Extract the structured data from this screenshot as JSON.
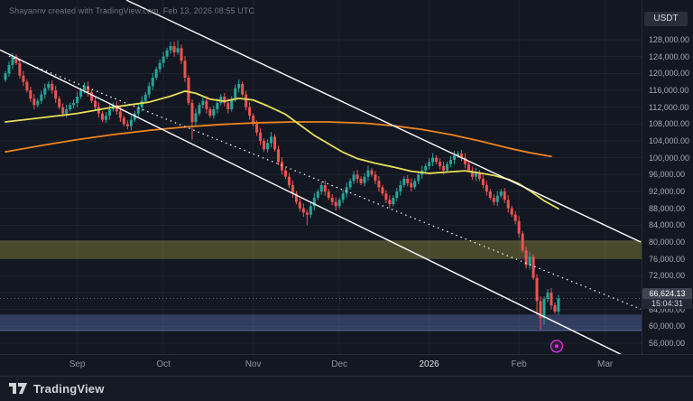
{
  "meta": {
    "attribution": "Shayannv created with TradingView.com, Feb 13, 2026 08:55 UTC",
    "currency_label": "USDT",
    "brand": "TradingView"
  },
  "price_label": {
    "price": "66,624.13",
    "countdown": "15:04:31"
  },
  "chart_data": {
    "type": "candlestick",
    "unit": "USD",
    "ylim": [
      52000,
      137400
    ],
    "grid": true,
    "price_ticks": [
      128000,
      124000,
      120000,
      116000,
      112000,
      108000,
      104000,
      100000,
      96000,
      92000,
      88000,
      84000,
      80000,
      76000,
      72000,
      68000,
      64000,
      60000,
      56000
    ],
    "time_ticks": [
      {
        "label": "Sep",
        "index": 20
      },
      {
        "label": "Oct",
        "index": 44
      },
      {
        "label": "Nov",
        "index": 69
      },
      {
        "label": "Dec",
        "index": 93
      },
      {
        "label": "2026",
        "index": 118,
        "year": true
      },
      {
        "label": "Feb",
        "index": 143
      },
      {
        "label": "Mar",
        "index": 167
      }
    ],
    "candles": {
      "up_color": "#26a69a",
      "down_color": "#ef5350",
      "first_open": 118500,
      "default_wick": 600,
      "closes": [
        120000,
        122000,
        124000,
        122500,
        119500,
        118000,
        116000,
        114000,
        112500,
        113500,
        115000,
        116500,
        117500,
        116000,
        114000,
        112000,
        110500,
        111500,
        112500,
        113000,
        114500,
        116000,
        117000,
        115500,
        113500,
        112000,
        110500,
        109000,
        110000,
        111500,
        112500,
        111000,
        109500,
        108000,
        107500,
        109000,
        110500,
        112000,
        113500,
        115000,
        117000,
        119000,
        121000,
        122500,
        124000,
        125500,
        126500,
        125000,
        126000,
        123000,
        119000,
        113000,
        108500,
        110500,
        112500,
        113500,
        111500,
        110000,
        111500,
        113000,
        114500,
        113000,
        111500,
        114000,
        116500,
        117500,
        115000,
        112000,
        110000,
        108000,
        106000,
        104000,
        102000,
        103500,
        105000,
        102000,
        99000,
        97000,
        95500,
        93500,
        91500,
        89500,
        88000,
        87000,
        86500,
        88500,
        90500,
        92000,
        93500,
        92000,
        90500,
        89500,
        88500,
        90000,
        91500,
        93000,
        94500,
        96000,
        95000,
        94000,
        95500,
        97000,
        96000,
        94500,
        93000,
        91500,
        90000,
        89000,
        90500,
        92000,
        93500,
        95000,
        94000,
        93000,
        94500,
        96000,
        97000,
        98000,
        99000,
        100000,
        99000,
        98000,
        97000,
        98500,
        99500,
        100500,
        101000,
        100000,
        98500,
        97000,
        95500,
        96500,
        95000,
        93500,
        92000,
        90500,
        89500,
        91000,
        92000,
        90000,
        88000,
        86500,
        85000,
        82000,
        78000,
        74500,
        76500,
        71500,
        66000,
        62000,
        66500,
        68000,
        65000,
        63500,
        66624.13
      ],
      "wick_overrides": {
        "2": {
          "high": 124900
        },
        "46": {
          "high": 127500
        },
        "48": {
          "high": 127900
        },
        "52": {
          "low": 104300
        },
        "84": {
          "low": 84000
        },
        "148": {
          "low": 62800
        },
        "149": {
          "low": 59200
        },
        "150": {
          "low": 60400
        }
      }
    },
    "overlays": {
      "ma_fast": {
        "color": "#e5df59",
        "points": [
          [
            0,
            108500
          ],
          [
            10,
            109500
          ],
          [
            20,
            110500
          ],
          [
            30,
            112000
          ],
          [
            40,
            113200
          ],
          [
            46,
            114600
          ],
          [
            50,
            115800
          ],
          [
            53,
            115300
          ],
          [
            57,
            113900
          ],
          [
            61,
            113400
          ],
          [
            65,
            114100
          ],
          [
            69,
            113700
          ],
          [
            73,
            112300
          ],
          [
            78,
            110300
          ],
          [
            82,
            107800
          ],
          [
            86,
            105300
          ],
          [
            90,
            103300
          ],
          [
            94,
            101300
          ],
          [
            98,
            99800
          ],
          [
            103,
            98700
          ],
          [
            108,
            97800
          ],
          [
            113,
            96800
          ],
          [
            118,
            96300
          ],
          [
            123,
            96600
          ],
          [
            128,
            96900
          ],
          [
            132,
            96400
          ],
          [
            136,
            95800
          ],
          [
            140,
            94900
          ],
          [
            143,
            93800
          ],
          [
            146,
            92200
          ],
          [
            150,
            89800
          ],
          [
            154,
            87900
          ]
        ]
      },
      "ma_slow": {
        "color": "#ef8320",
        "points": [
          [
            0,
            101400
          ],
          [
            10,
            102900
          ],
          [
            20,
            104300
          ],
          [
            30,
            105500
          ],
          [
            40,
            106500
          ],
          [
            50,
            107300
          ],
          [
            60,
            107900
          ],
          [
            70,
            108300
          ],
          [
            80,
            108500
          ],
          [
            90,
            108500
          ],
          [
            100,
            108200
          ],
          [
            108,
            107600
          ],
          [
            116,
            106700
          ],
          [
            124,
            105500
          ],
          [
            132,
            104000
          ],
          [
            140,
            102300
          ],
          [
            146,
            101200
          ],
          [
            152,
            100300
          ]
        ]
      }
    },
    "trendlines": [
      {
        "name": "descending-channel-upper",
        "style": "solid",
        "color": "#ffffff",
        "i1": 33.7,
        "p1": 137400,
        "i2": 176.9,
        "p2": 80000
      },
      {
        "name": "descending-channel-lower",
        "style": "solid",
        "color": "#ffffff",
        "i1": -1.5,
        "p1": 125600,
        "i2": 174.4,
        "p2": 52100
      },
      {
        "name": "descending-dotted-trendline",
        "style": "dotted",
        "color": "#ffffff",
        "i1": 1,
        "p1": 124100,
        "i2": 176.9,
        "p2": 64100
      }
    ],
    "zones": [
      {
        "name": "resistance-zone",
        "top": 80400,
        "bottom": 76000,
        "fill": "rgba(200,188,76,0.30)"
      },
      {
        "name": "support-zone",
        "top": 62800,
        "bottom": 59000,
        "fill": "rgba(92,116,184,0.42)",
        "edge": "rgba(130,160,230,0.55)"
      }
    ],
    "marker": {
      "index": 153.5,
      "price": 55300,
      "color": "#d633d6"
    },
    "last_price": 66624.13,
    "countdown": "15:04:31"
  }
}
